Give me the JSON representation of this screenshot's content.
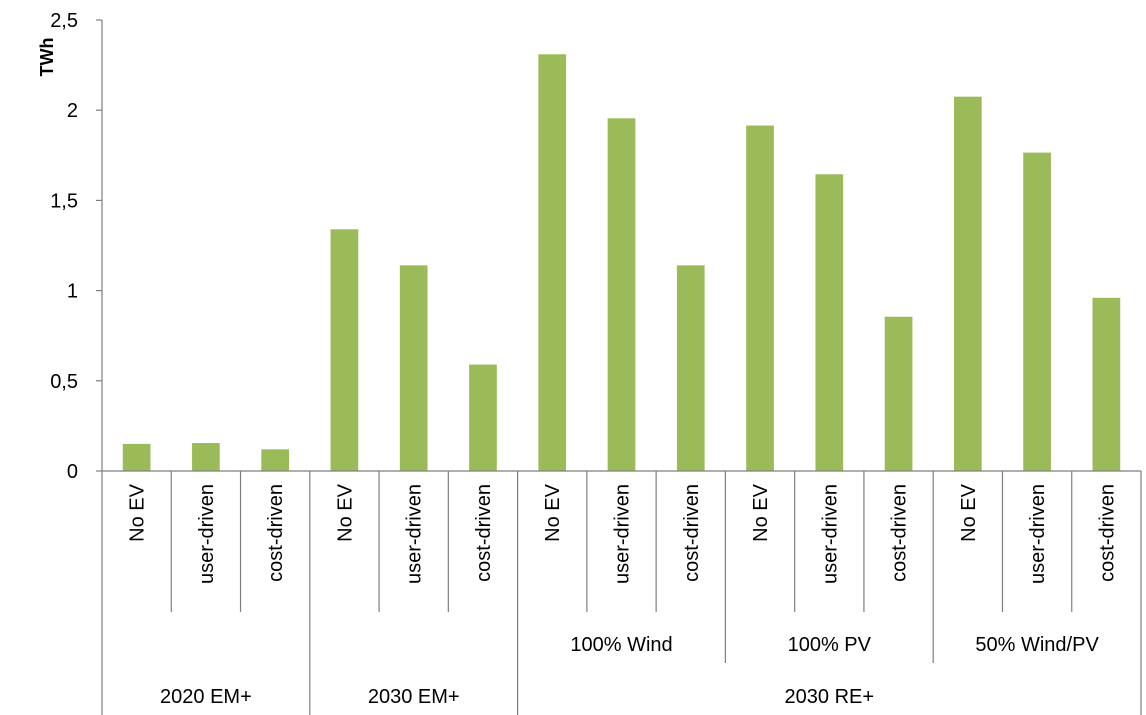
{
  "chart_data": {
    "type": "bar",
    "ylabel": "TWh",
    "ylim": [
      0,
      2.5
    ],
    "yticks": [
      "0",
      "0,5",
      "1",
      "1,5",
      "2",
      "2,5"
    ],
    "bar_color": "#9bbb59",
    "categories": [
      "No EV",
      "user-driven",
      "cost-driven",
      "No EV",
      "user-driven",
      "cost-driven",
      "No EV",
      "user-driven",
      "cost-driven",
      "No EV",
      "user-driven",
      "cost-driven",
      "No EV",
      "user-driven",
      "cost-driven"
    ],
    "values": [
      0.15,
      0.155,
      0.12,
      1.34,
      1.14,
      0.59,
      2.31,
      1.955,
      1.14,
      1.915,
      1.645,
      0.855,
      2.075,
      1.765,
      0.96
    ],
    "subgroups": [
      "",
      "",
      "100% Wind",
      "100% PV",
      "50% Wind/PV"
    ],
    "groups": [
      {
        "label": "2020 EM+",
        "span": 3
      },
      {
        "label": "2030 EM+",
        "span": 3
      },
      {
        "label": "2030 RE+",
        "span": 9
      }
    ]
  }
}
